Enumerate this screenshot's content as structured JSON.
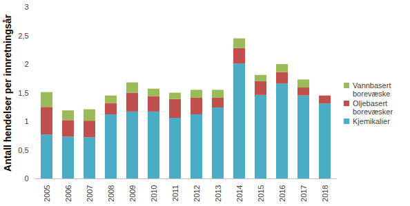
{
  "chart_data": {
    "type": "bar",
    "stacked": true,
    "grid": false,
    "legend": "right",
    "y_label": "Antall hendelser per innretningsår",
    "categories": [
      "2005",
      "2006",
      "2007",
      "2008",
      "2009",
      "2010",
      "2011",
      "2012",
      "2013",
      "2014",
      "2015",
      "2016",
      "2017",
      "2018"
    ],
    "series": [
      {
        "name": "Kjemikalier",
        "color": "#4bacc6",
        "values": [
          0.77,
          0.73,
          0.72,
          1.12,
          1.17,
          1.17,
          1.06,
          1.12,
          1.24,
          2.01,
          1.46,
          1.66,
          1.45,
          1.31
        ]
      },
      {
        "name": "Oljebasert borevæsker",
        "color": "#c0504d",
        "values": [
          0.48,
          0.29,
          0.29,
          0.2,
          0.33,
          0.27,
          0.33,
          0.29,
          0.17,
          0.27,
          0.24,
          0.2,
          0.14,
          0.14
        ]
      },
      {
        "name": "Vannbasert borevæske",
        "color": "#9bbb59",
        "values": [
          0.26,
          0.17,
          0.2,
          0.13,
          0.18,
          0.13,
          0.11,
          0.14,
          0.14,
          0.17,
          0.11,
          0.14,
          0.14,
          0
        ]
      }
    ],
    "ylim": [
      0,
      3
    ],
    "yticks": [
      0,
      {
        "value": 0.5,
        "label": "0,5"
      },
      1,
      {
        "value": 1.5,
        "label": "1,5"
      },
      2,
      {
        "value": 2.5,
        "label": "2,5"
      },
      3
    ]
  }
}
